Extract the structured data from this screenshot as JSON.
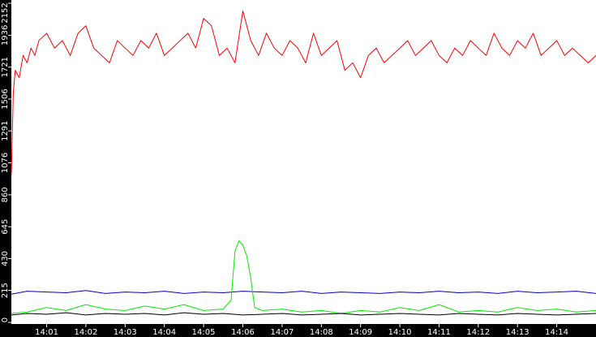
{
  "chart_data": {
    "type": "line",
    "title": "",
    "xlabel": "",
    "ylabel": "",
    "ylim": [
      0,
      2152
    ],
    "y_ticks": [
      0,
      215,
      430,
      645,
      860,
      1076,
      1291,
      1506,
      1721,
      1936,
      2152
    ],
    "y_tick_labels": [
      "0",
      "215",
      "430",
      "645",
      "860",
      "1076",
      "1291",
      "1506",
      "1721",
      "1936",
      "2152"
    ],
    "x_tick_labels": [
      "14:01",
      "14:02",
      "14:03",
      "14:04",
      "14:05",
      "14:06",
      "14:07",
      "14:08",
      "14:09",
      "14:10",
      "14:11",
      "14:12",
      "14:13",
      "14:14"
    ],
    "x_ticks": [
      1,
      2,
      3,
      4,
      5,
      6,
      7,
      8,
      9,
      10,
      11,
      12,
      13,
      14
    ],
    "xlim": [
      0.1,
      15.0
    ],
    "grid": false,
    "legend": "none",
    "background_color": "#ffffff",
    "axis_color": "#000000",
    "series": [
      {
        "color": "#ff0000",
        "x": [
          0.1,
          0.15,
          0.2,
          0.3,
          0.4,
          0.5,
          0.6,
          0.7,
          0.8,
          1.0,
          1.2,
          1.4,
          1.6,
          1.8,
          2.0,
          2.2,
          2.4,
          2.6,
          2.8,
          3.0,
          3.2,
          3.4,
          3.6,
          3.8,
          4.0,
          4.2,
          4.4,
          4.6,
          4.8,
          5.0,
          5.2,
          5.4,
          5.6,
          5.8,
          6.0,
          6.2,
          6.4,
          6.6,
          6.8,
          7.0,
          7.2,
          7.4,
          7.6,
          7.8,
          8.0,
          8.2,
          8.4,
          8.6,
          8.8,
          9.0,
          9.2,
          9.4,
          9.6,
          9.8,
          10.0,
          10.2,
          10.4,
          10.6,
          10.8,
          11.0,
          11.2,
          11.4,
          11.6,
          11.8,
          12.0,
          12.2,
          12.4,
          12.6,
          12.8,
          13.0,
          13.2,
          13.4,
          13.6,
          13.8,
          14.0,
          14.2,
          14.4,
          14.6,
          14.8,
          15.0
        ],
        "y": [
          1000,
          1550,
          1700,
          1650,
          1800,
          1750,
          1850,
          1800,
          1900,
          1950,
          1850,
          1900,
          1800,
          1950,
          2000,
          1850,
          1800,
          1750,
          1900,
          1850,
          1800,
          1900,
          1850,
          1950,
          1800,
          1850,
          1900,
          1950,
          1850,
          2050,
          2000,
          1800,
          1850,
          1750,
          2100,
          1900,
          1800,
          1950,
          1850,
          1800,
          1900,
          1850,
          1750,
          1950,
          1800,
          1850,
          1900,
          1700,
          1750,
          1650,
          1800,
          1850,
          1750,
          1800,
          1850,
          1900,
          1800,
          1850,
          1900,
          1800,
          1750,
          1850,
          1800,
          1900,
          1850,
          1800,
          1950,
          1850,
          1800,
          1900,
          1850,
          1950,
          1800,
          1850,
          1900,
          1800,
          1850,
          1800,
          1750,
          1800
        ]
      },
      {
        "color": "#0000cc",
        "x": [
          0.1,
          0.5,
          1.0,
          1.5,
          2.0,
          2.5,
          3.0,
          3.5,
          4.0,
          4.5,
          5.0,
          5.5,
          6.0,
          6.5,
          7.0,
          7.5,
          8.0,
          8.5,
          9.0,
          9.5,
          10.0,
          10.5,
          11.0,
          11.5,
          12.0,
          12.5,
          13.0,
          13.5,
          14.0,
          14.5,
          15.0
        ],
        "y": [
          190,
          210,
          205,
          200,
          215,
          195,
          205,
          200,
          210,
          195,
          205,
          200,
          210,
          205,
          200,
          210,
          195,
          205,
          200,
          195,
          205,
          200,
          210,
          200,
          205,
          195,
          210,
          200,
          205,
          210,
          195
        ]
      },
      {
        "color": "#00ee00",
        "x": [
          0.1,
          0.5,
          1.0,
          1.5,
          2.0,
          2.5,
          3.0,
          3.5,
          4.0,
          4.5,
          5.0,
          5.5,
          5.7,
          5.8,
          5.9,
          6.0,
          6.1,
          6.2,
          6.3,
          6.5,
          7.0,
          7.5,
          8.0,
          8.5,
          9.0,
          9.5,
          10.0,
          10.5,
          11.0,
          11.5,
          12.0,
          12.5,
          13.0,
          13.5,
          14.0,
          14.5,
          15.0
        ],
        "y": [
          60,
          70,
          100,
          80,
          120,
          90,
          80,
          110,
          90,
          120,
          80,
          90,
          150,
          480,
          550,
          520,
          450,
          300,
          100,
          80,
          90,
          70,
          80,
          60,
          80,
          70,
          100,
          80,
          120,
          70,
          80,
          70,
          100,
          80,
          90,
          70,
          80
        ]
      },
      {
        "color": "#000000",
        "x": [
          0.1,
          0.5,
          1.0,
          1.5,
          2.0,
          2.5,
          3.0,
          3.5,
          4.0,
          4.5,
          5.0,
          5.5,
          6.0,
          6.5,
          7.0,
          7.5,
          8.0,
          8.5,
          9.0,
          9.5,
          10.0,
          10.5,
          11.0,
          11.5,
          12.0,
          12.5,
          13.0,
          13.5,
          14.0,
          14.5,
          15.0
        ],
        "y": [
          50,
          60,
          55,
          65,
          50,
          60,
          55,
          60,
          50,
          65,
          55,
          60,
          50,
          55,
          60,
          50,
          55,
          60,
          50,
          55,
          60,
          55,
          50,
          60,
          55,
          50,
          60,
          55,
          50,
          55,
          60
        ]
      }
    ]
  }
}
